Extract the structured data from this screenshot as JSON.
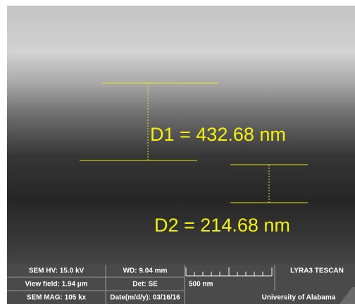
{
  "measurements": [
    {
      "label": "D1 = 432.68 nm"
    },
    {
      "label": "D2 = 214.68 nm"
    }
  ],
  "info_bar": {
    "hv": "SEM HV: 15.0 kV",
    "wd": "WD: 9.04 mm",
    "instrument": "LYRA3 TESCAN",
    "view_field": "View field: 1.94 µm",
    "detector": "Det: SE",
    "scale_label": "500 nm",
    "mag": "SEM MAG: 105 kx",
    "date": "Date(m/d/y): 03/16/16",
    "institution": "University of Alabama"
  }
}
